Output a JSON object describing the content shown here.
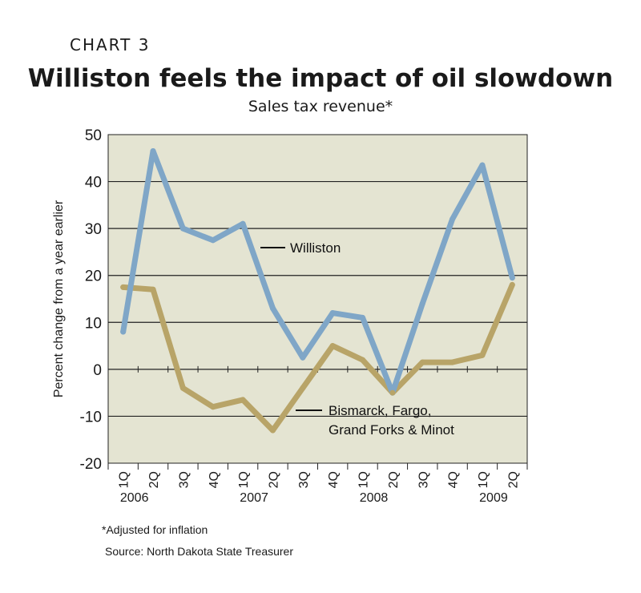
{
  "header": {
    "label": "CHART 3",
    "title": "Williston feels the impact of oil slowdown",
    "subtitle": "Sales tax revenue*"
  },
  "footer": {
    "footnote": "*Adjusted for inflation",
    "source": "Source: North Dakota State Treasurer"
  },
  "colors": {
    "plot_bg": "#e4e4d2",
    "williston": "#7fa6c7",
    "others": "#b8a468",
    "grid": "#222222"
  },
  "chart_data": {
    "type": "line",
    "title": "Williston feels the impact of oil slowdown",
    "subtitle": "Sales tax revenue*",
    "xlabel": "",
    "ylabel": "Percent change from a year earlier",
    "ylim": [
      -20,
      50
    ],
    "yticks": [
      50,
      40,
      30,
      20,
      10,
      0,
      -10,
      -20
    ],
    "grid": true,
    "categories": [
      "1Q",
      "2Q",
      "3Q",
      "4Q",
      "1Q",
      "2Q",
      "3Q",
      "4Q",
      "1Q",
      "2Q",
      "3Q",
      "4Q",
      "1Q",
      "2Q"
    ],
    "year_labels": [
      {
        "index": 0,
        "label": "2006"
      },
      {
        "index": 4,
        "label": "2007"
      },
      {
        "index": 8,
        "label": "2008"
      },
      {
        "index": 12,
        "label": "2009"
      }
    ],
    "series": [
      {
        "name": "Williston",
        "values": [
          8,
          46.5,
          30,
          27.5,
          31,
          13,
          2.5,
          12,
          11,
          -5,
          14,
          32,
          43.5,
          19.5
        ]
      },
      {
        "name": "Bismarck, Fargo, Grand Forks & Minot",
        "values": [
          17.5,
          17,
          -4,
          -8,
          -6.5,
          -13,
          -4,
          5,
          2,
          -5,
          1.5,
          1.5,
          3,
          18
        ]
      }
    ],
    "annotations": {
      "williston_label": "Williston",
      "others_label_line1": "Bismarck, Fargo,",
      "others_label_line2": "Grand Forks & Minot"
    }
  }
}
